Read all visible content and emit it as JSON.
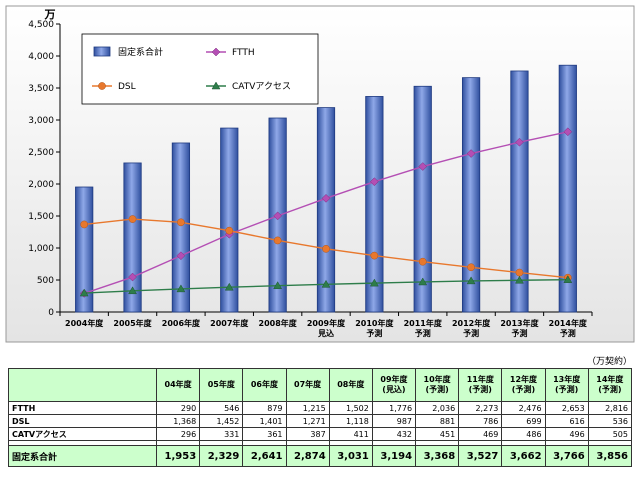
{
  "chart_data": {
    "type": "bar",
    "y_unit": "万",
    "ylim": [
      0,
      4500
    ],
    "yticks": [
      "0",
      "500",
      "1,000",
      "1,500",
      "2,000",
      "2,500",
      "3,000",
      "3,500",
      "4,000",
      "4,500"
    ],
    "ytick_values": [
      0,
      500,
      1000,
      1500,
      2000,
      2500,
      3000,
      3500,
      4000,
      4500
    ],
    "categories": [
      [
        "2004年度"
      ],
      [
        "2005年度"
      ],
      [
        "2006年度"
      ],
      [
        "2007年度"
      ],
      [
        "2008年度"
      ],
      [
        "2009年度",
        "見込"
      ],
      [
        "2010年度",
        "予測"
      ],
      [
        "2011年度",
        "予測"
      ],
      [
        "2012年度",
        "予測"
      ],
      [
        "2013年度",
        "予測"
      ],
      [
        "2014年度",
        "予測"
      ]
    ],
    "legend_position": "top-left",
    "grid": false,
    "series": [
      {
        "name": "固定系合計",
        "kind": "bar",
        "color": "#4a6fc1",
        "values": [
          1953,
          2329,
          2641,
          2874,
          3031,
          3194,
          3368,
          3527,
          3662,
          3766,
          3856
        ]
      },
      {
        "name": "FTTH",
        "kind": "line",
        "color": "#b44fb4",
        "marker": "diamond",
        "values": [
          290,
          546,
          879,
          1215,
          1502,
          1776,
          2036,
          2273,
          2476,
          2653,
          2816
        ]
      },
      {
        "name": "DSL",
        "kind": "line",
        "color": "#e8782d",
        "marker": "circle",
        "values": [
          1368,
          1452,
          1401,
          1271,
          1118,
          987,
          881,
          786,
          699,
          616,
          536
        ]
      },
      {
        "name": "CATVアクセス",
        "kind": "line",
        "color": "#2e7d4a",
        "marker": "triangle",
        "values": [
          296,
          331,
          361,
          387,
          411,
          432,
          451,
          469,
          486,
          496,
          505
        ]
      }
    ]
  },
  "table": {
    "unit_note": "（万契約）",
    "headers": [
      [
        "04年度"
      ],
      [
        "05年度"
      ],
      [
        "06年度"
      ],
      [
        "07年度"
      ],
      [
        "08年度"
      ],
      [
        "09年度",
        "(見込)"
      ],
      [
        "10年度",
        "(予測)"
      ],
      [
        "11年度",
        "(予測)"
      ],
      [
        "12年度",
        "(予測)"
      ],
      [
        "13年度",
        "(予測)"
      ],
      [
        "14年度",
        "(予測)"
      ]
    ],
    "rows": [
      {
        "label": "FTTH",
        "values": [
          "290",
          "546",
          "879",
          "1,215",
          "1,502",
          "1,776",
          "2,036",
          "2,273",
          "2,476",
          "2,653",
          "2,816"
        ]
      },
      {
        "label": "DSL",
        "values": [
          "1,368",
          "1,452",
          "1,401",
          "1,271",
          "1,118",
          "987",
          "881",
          "786",
          "699",
          "616",
          "536"
        ]
      },
      {
        "label": "CATVアクセス",
        "values": [
          "296",
          "331",
          "361",
          "387",
          "411",
          "432",
          "451",
          "469",
          "486",
          "496",
          "505"
        ]
      }
    ],
    "total": {
      "label": "固定系合計",
      "values": [
        "1,953",
        "2,329",
        "2,641",
        "2,874",
        "3,031",
        "3,194",
        "3,368",
        "3,527",
        "3,662",
        "3,766",
        "3,856"
      ]
    }
  }
}
